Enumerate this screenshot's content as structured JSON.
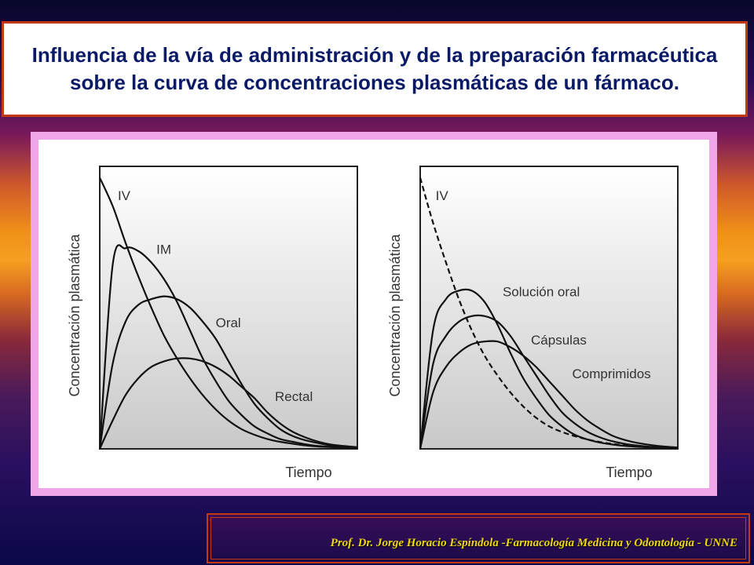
{
  "slide": {
    "title": "Influencia de la vía de administración y de la preparación farmacéutica sobre la curva de concentraciones plasmáticas de un fármaco.",
    "footer": "Prof. Dr. Jorge Horacio Espíndola -Farmacología Medicina y Odontología - UNNE"
  },
  "colors": {
    "title_border": "#c43a10",
    "title_text": "#0a1a66",
    "frame": "#f2a6ea",
    "footer_text": "#f0d810"
  },
  "chart_data": [
    {
      "type": "line",
      "title": "",
      "xlabel": "Tiempo",
      "ylabel": "Concentración plasmática",
      "xlim": [
        0,
        10
      ],
      "ylim": [
        0,
        10
      ],
      "grid": false,
      "x": [
        0,
        0.5,
        1,
        1.5,
        2,
        2.5,
        3,
        3.5,
        4,
        4.5,
        5,
        5.5,
        6,
        6.5,
        7,
        7.5,
        8,
        8.5,
        9,
        9.5,
        10
      ],
      "series": [
        {
          "name": "IV",
          "dashed": false,
          "values": [
            9.6,
            8.6,
            7.3,
            6.1,
            5.0,
            4.0,
            3.2,
            2.5,
            1.9,
            1.4,
            1.0,
            0.7,
            0.5,
            0.35,
            0.25,
            0.18,
            0.12,
            0.08,
            0.06,
            0.04,
            0.03
          ]
        },
        {
          "name": "IM",
          "dashed": false,
          "values": [
            0,
            6.5,
            7.1,
            7.0,
            6.6,
            6.0,
            5.2,
            4.2,
            3.2,
            2.4,
            1.7,
            1.2,
            0.8,
            0.55,
            0.35,
            0.25,
            0.16,
            0.1,
            0.07,
            0.05,
            0.03
          ]
        },
        {
          "name": "Oral",
          "dashed": false,
          "values": [
            0,
            3.0,
            4.5,
            5.1,
            5.3,
            5.4,
            5.3,
            5.0,
            4.5,
            3.9,
            3.1,
            2.3,
            1.6,
            1.1,
            0.7,
            0.45,
            0.3,
            0.2,
            0.12,
            0.08,
            0.05
          ]
        },
        {
          "name": "Rectal",
          "dashed": false,
          "values": [
            0,
            1.0,
            1.9,
            2.5,
            2.9,
            3.1,
            3.2,
            3.2,
            3.1,
            2.9,
            2.6,
            2.2,
            1.8,
            1.3,
            0.9,
            0.6,
            0.4,
            0.25,
            0.15,
            0.1,
            0.06
          ]
        }
      ],
      "labels": [
        {
          "text": "IV",
          "x": 0.7,
          "y": 8.8
        },
        {
          "text": "IM",
          "x": 2.2,
          "y": 6.9
        },
        {
          "text": "Oral",
          "x": 4.5,
          "y": 4.3
        },
        {
          "text": "Rectal",
          "x": 6.8,
          "y": 1.7
        }
      ]
    },
    {
      "type": "line",
      "title": "",
      "xlabel": "Tiempo",
      "ylabel": "Concentración plasmática",
      "xlim": [
        0,
        10
      ],
      "ylim": [
        0,
        10
      ],
      "grid": false,
      "x": [
        0,
        0.5,
        1,
        1.5,
        2,
        2.5,
        3,
        3.5,
        4,
        4.5,
        5,
        5.5,
        6,
        6.5,
        7,
        7.5,
        8,
        8.5,
        9,
        9.5,
        10
      ],
      "series": [
        {
          "name": "IV",
          "dashed": true,
          "values": [
            9.6,
            8.0,
            6.6,
            5.3,
            4.2,
            3.3,
            2.6,
            2.0,
            1.5,
            1.1,
            0.8,
            0.6,
            0.45,
            0.33,
            0.24,
            0.17,
            0.12,
            0.08,
            0.06,
            0.04,
            0.03
          ]
        },
        {
          "name": "Solución oral",
          "dashed": false,
          "values": [
            0,
            4.2,
            5.3,
            5.6,
            5.6,
            5.2,
            4.4,
            3.4,
            2.5,
            1.8,
            1.2,
            0.8,
            0.5,
            0.33,
            0.22,
            0.15,
            0.1,
            0.07,
            0.05,
            0.03,
            0.02
          ]
        },
        {
          "name": "Cápsulas",
          "dashed": false,
          "values": [
            0,
            3.0,
            4.0,
            4.5,
            4.7,
            4.7,
            4.5,
            4.0,
            3.3,
            2.6,
            1.9,
            1.3,
            0.9,
            0.6,
            0.4,
            0.26,
            0.17,
            0.11,
            0.07,
            0.05,
            0.03
          ]
        },
        {
          "name": "Comprimidos",
          "dashed": false,
          "values": [
            0,
            2.0,
            2.9,
            3.4,
            3.7,
            3.8,
            3.8,
            3.6,
            3.3,
            2.9,
            2.4,
            1.9,
            1.4,
            1.0,
            0.7,
            0.45,
            0.3,
            0.2,
            0.13,
            0.08,
            0.05
          ]
        }
      ],
      "labels": [
        {
          "text": "IV",
          "x": 0.6,
          "y": 8.8
        },
        {
          "text": "Solución oral",
          "x": 3.2,
          "y": 5.4
        },
        {
          "text": "Cápsulas",
          "x": 4.3,
          "y": 3.7
        },
        {
          "text": "Comprimidos",
          "x": 5.9,
          "y": 2.5
        }
      ]
    }
  ]
}
